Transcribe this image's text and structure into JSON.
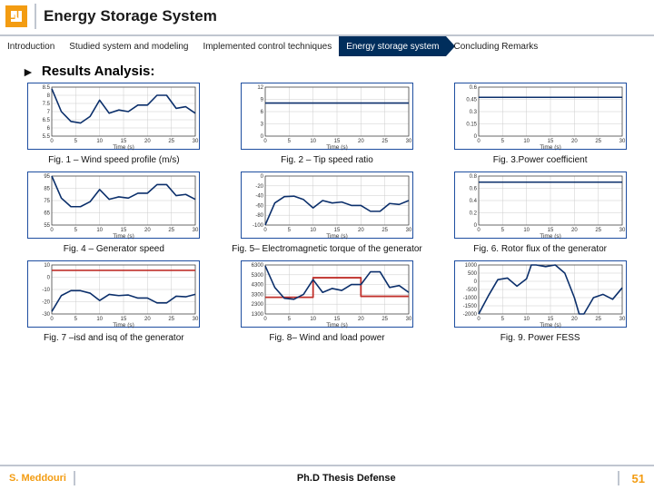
{
  "header": {
    "title": "Energy Storage System"
  },
  "tabs": [
    {
      "label": "Introduction",
      "active": false
    },
    {
      "label": "Studied system and modeling",
      "active": false
    },
    {
      "label": "Implemented control techniques",
      "active": false
    },
    {
      "label": "Energy storage system",
      "active": true
    },
    {
      "label": "Concluding Remarks",
      "active": false
    }
  ],
  "section": {
    "title": "Results Analysis:"
  },
  "charts": [
    {
      "caption": "Fig. 1 – Wind speed profile (m/s)",
      "ylim": [
        5.5,
        8.5
      ],
      "yticks": [
        5.5,
        6,
        6.5,
        7,
        7.5,
        8,
        8.5
      ],
      "xlim": [
        0,
        30
      ],
      "xticks": [
        0,
        5,
        10,
        15,
        20,
        25,
        30
      ],
      "xlabel": "Time (s)",
      "series": [
        {
          "color": "#0b2f6b",
          "width": 1.6,
          "data": [
            [
              0,
              8.4
            ],
            [
              2,
              7.0
            ],
            [
              4,
              6.4
            ],
            [
              6,
              6.3
            ],
            [
              8,
              6.7
            ],
            [
              10,
              7.7
            ],
            [
              12,
              6.9
            ],
            [
              14,
              7.1
            ],
            [
              16,
              7.0
            ],
            [
              18,
              7.4
            ],
            [
              20,
              7.4
            ],
            [
              22,
              8.0
            ],
            [
              24,
              8.0
            ],
            [
              26,
              7.2
            ],
            [
              28,
              7.3
            ],
            [
              30,
              6.9
            ]
          ]
        }
      ]
    },
    {
      "caption": "Fig. 2 – Tip speed ratio",
      "ylim": [
        0,
        12
      ],
      "yticks": [
        0,
        3,
        6,
        9,
        12
      ],
      "xlim": [
        0,
        30
      ],
      "xticks": [
        0,
        5,
        10,
        15,
        20,
        25,
        30
      ],
      "xlabel": "Time (s)",
      "series": [
        {
          "color": "#0b2f6b",
          "width": 1.6,
          "data": [
            [
              0,
              8.1
            ],
            [
              30,
              8.1
            ]
          ]
        }
      ]
    },
    {
      "caption": "Fig. 3.Power coefficient",
      "ylim": [
        0,
        0.6
      ],
      "yticks": [
        0,
        0.15,
        0.3,
        0.45,
        0.6
      ],
      "xlim": [
        0,
        30
      ],
      "xticks": [
        0,
        5,
        10,
        15,
        20,
        25,
        30
      ],
      "xlabel": "Time (s)",
      "series": [
        {
          "color": "#0b2f6b",
          "width": 1.6,
          "data": [
            [
              0,
              0.475
            ],
            [
              30,
              0.475
            ]
          ]
        }
      ]
    },
    {
      "caption": "Fig. 4 – Generator speed",
      "ylim": [
        55,
        95
      ],
      "yticks": [
        55,
        65,
        75,
        85,
        95
      ],
      "xlim": [
        0,
        30
      ],
      "xticks": [
        0,
        5,
        10,
        15,
        20,
        25,
        30
      ],
      "xlabel": "Time (s)",
      "series": [
        {
          "color": "#0b2f6b",
          "width": 1.6,
          "data": [
            [
              0,
              95
            ],
            [
              2,
              77
            ],
            [
              4,
              70
            ],
            [
              6,
              70
            ],
            [
              8,
              74
            ],
            [
              10,
              84
            ],
            [
              12,
              76
            ],
            [
              14,
              78
            ],
            [
              16,
              77
            ],
            [
              18,
              81
            ],
            [
              20,
              81
            ],
            [
              22,
              88
            ],
            [
              24,
              88
            ],
            [
              26,
              79
            ],
            [
              28,
              80
            ],
            [
              30,
              76
            ]
          ]
        }
      ]
    },
    {
      "caption": "Fig. 5– Electromagnetic torque of the generator",
      "ylim": [
        -100,
        0
      ],
      "yticks": [
        -100,
        -80,
        -60,
        -40,
        -20,
        0
      ],
      "xlim": [
        0,
        30
      ],
      "xticks": [
        0,
        5,
        10,
        15,
        20,
        25,
        30
      ],
      "xlabel": "Time (s)",
      "series": [
        {
          "color": "#0b2f6b",
          "width": 1.6,
          "data": [
            [
              0,
              -100
            ],
            [
              2,
              -55
            ],
            [
              4,
              -42
            ],
            [
              6,
              -41
            ],
            [
              8,
              -48
            ],
            [
              10,
              -65
            ],
            [
              12,
              -50
            ],
            [
              14,
              -55
            ],
            [
              16,
              -53
            ],
            [
              18,
              -60
            ],
            [
              20,
              -60
            ],
            [
              22,
              -72
            ],
            [
              24,
              -72
            ],
            [
              26,
              -56
            ],
            [
              28,
              -58
            ],
            [
              30,
              -50
            ]
          ]
        }
      ]
    },
    {
      "caption": "Fig. 6. Rotor flux of the generator",
      "ylim": [
        0,
        0.8
      ],
      "yticks": [
        0,
        0.2,
        0.4,
        0.6,
        0.8
      ],
      "xlim": [
        0,
        30
      ],
      "xticks": [
        0,
        5,
        10,
        15,
        20,
        25,
        30
      ],
      "xlabel": "Time (s)",
      "series": [
        {
          "color": "#0b2f6b",
          "width": 1.6,
          "data": [
            [
              0,
              0.7
            ],
            [
              30,
              0.7
            ]
          ]
        }
      ]
    },
    {
      "caption": "Fig. 7 –isd and isq of the generator",
      "ylim": [
        -30,
        10
      ],
      "yticks": [
        -30,
        -20,
        -10,
        0,
        10
      ],
      "xlim": [
        0,
        30
      ],
      "xticks": [
        0,
        5,
        10,
        15,
        20,
        25,
        30
      ],
      "xlabel": "Time (s)",
      "series": [
        {
          "color": "#c0302b",
          "width": 1.6,
          "data": [
            [
              0,
              5.6
            ],
            [
              30,
              5.6
            ]
          ]
        },
        {
          "color": "#0b2f6b",
          "width": 1.6,
          "data": [
            [
              0,
              -28
            ],
            [
              2,
              -15
            ],
            [
              4,
              -11
            ],
            [
              6,
              -11
            ],
            [
              8,
              -13
            ],
            [
              10,
              -19
            ],
            [
              12,
              -14
            ],
            [
              14,
              -15
            ],
            [
              16,
              -14.5
            ],
            [
              18,
              -17
            ],
            [
              20,
              -17
            ],
            [
              22,
              -21
            ],
            [
              24,
              -21
            ],
            [
              26,
              -15.5
            ],
            [
              28,
              -16
            ],
            [
              30,
              -14
            ]
          ]
        }
      ]
    },
    {
      "caption": "Fig. 8– Wind and load power",
      "ylim": [
        1300,
        6300
      ],
      "yticks": [
        1300,
        2300,
        3300,
        4300,
        5300,
        6300
      ],
      "xlim": [
        0,
        30
      ],
      "xticks": [
        0,
        5,
        10,
        15,
        20,
        25,
        30
      ],
      "xlabel": "Time (s)",
      "series": [
        {
          "color": "#c0302b",
          "width": 1.8,
          "data": [
            [
              0,
              3000
            ],
            [
              10,
              3000
            ],
            [
              10,
              5000
            ],
            [
              20,
              5000
            ],
            [
              20,
              3100
            ],
            [
              30,
              3100
            ]
          ]
        },
        {
          "color": "#0b2f6b",
          "width": 1.6,
          "data": [
            [
              0,
              6200
            ],
            [
              2,
              4000
            ],
            [
              4,
              2900
            ],
            [
              6,
              2800
            ],
            [
              8,
              3300
            ],
            [
              10,
              4800
            ],
            [
              12,
              3500
            ],
            [
              14,
              3900
            ],
            [
              16,
              3700
            ],
            [
              18,
              4300
            ],
            [
              20,
              4300
            ],
            [
              22,
              5600
            ],
            [
              24,
              5600
            ],
            [
              26,
              4000
            ],
            [
              28,
              4200
            ],
            [
              30,
              3500
            ]
          ]
        }
      ]
    },
    {
      "caption": "Fig. 9. Power FESS",
      "ylim": [
        -2000,
        1000
      ],
      "yticks": [
        -2000,
        -1500,
        -1000,
        -500,
        0,
        500,
        1000
      ],
      "xlim": [
        0,
        30
      ],
      "xticks": [
        0,
        5,
        10,
        15,
        20,
        25,
        30
      ],
      "xlabel": "Time (s)",
      "series": [
        {
          "color": "#0b2f6b",
          "width": 1.6,
          "data": [
            [
              0,
              -2000
            ],
            [
              2,
              -900
            ],
            [
              4,
              100
            ],
            [
              6,
              200
            ],
            [
              8,
              -300
            ],
            [
              10,
              150
            ],
            [
              11,
              1000
            ],
            [
              12,
              1000
            ],
            [
              14,
              900
            ],
            [
              16,
              1000
            ],
            [
              18,
              500
            ],
            [
              20,
              -1000
            ],
            [
              21,
              -2000
            ],
            [
              22,
              -2000
            ],
            [
              24,
              -1000
            ],
            [
              26,
              -800
            ],
            [
              28,
              -1100
            ],
            [
              30,
              -400
            ]
          ]
        }
      ]
    }
  ],
  "footer": {
    "author": "S. Meddouri",
    "center": "Ph.D Thesis Defense",
    "page": "51"
  },
  "colors": {
    "accent": "#f39c12",
    "navy": "#002e5c",
    "line_dark": "#0b2f6b",
    "line_red": "#c0302b",
    "rule": "#c0c6d0",
    "grid": "#cccccc"
  }
}
